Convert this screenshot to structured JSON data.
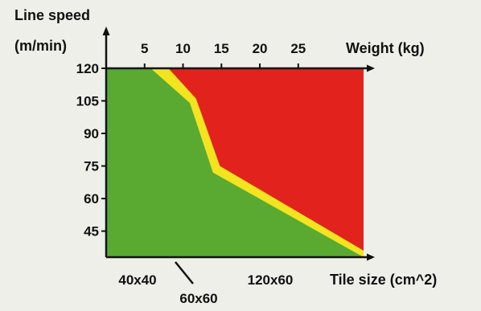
{
  "chart_data": {
    "type": "area",
    "title": "",
    "ylabel_line1": "Line speed",
    "ylabel_line2": "(m/min)",
    "x_top_label": "Weight (kg)",
    "x_bottom_label": "Tile size (cm^2)",
    "y_ticks": [
      "120",
      "105",
      "90",
      "75",
      "60",
      "45"
    ],
    "y_tick_values": [
      120,
      105,
      90,
      75,
      60,
      45
    ],
    "top_ticks": [
      "5",
      "10",
      "15",
      "20",
      "25"
    ],
    "top_tick_values": [
      5,
      10,
      15,
      20,
      25
    ],
    "bottom_ticks": [
      {
        "label": "40x40",
        "position": "below-axis"
      },
      {
        "label": "120x60",
        "position": "below-axis"
      }
    ],
    "callout_label": "60x60",
    "ylim": [
      33,
      120
    ],
    "xlim_weight": [
      0,
      33.5
    ],
    "zones": [
      {
        "name": "safe",
        "color": "#5aaa32"
      },
      {
        "name": "limit",
        "color": "#f2e41e"
      },
      {
        "name": "unsafe",
        "color": "#e2231d"
      }
    ],
    "limit_curve_upper": [
      {
        "weight": 8.1,
        "speed": 120
      },
      {
        "weight": 11.7,
        "speed": 106
      },
      {
        "weight": 14.8,
        "speed": 75
      },
      {
        "weight": 33.5,
        "speed": 36
      }
    ],
    "limit_curve_lower": [
      {
        "weight": 5.8,
        "speed": 120
      },
      {
        "weight": 10.9,
        "speed": 104
      },
      {
        "weight": 13.9,
        "speed": 72
      },
      {
        "weight": 33.5,
        "speed": 33
      }
    ]
  }
}
